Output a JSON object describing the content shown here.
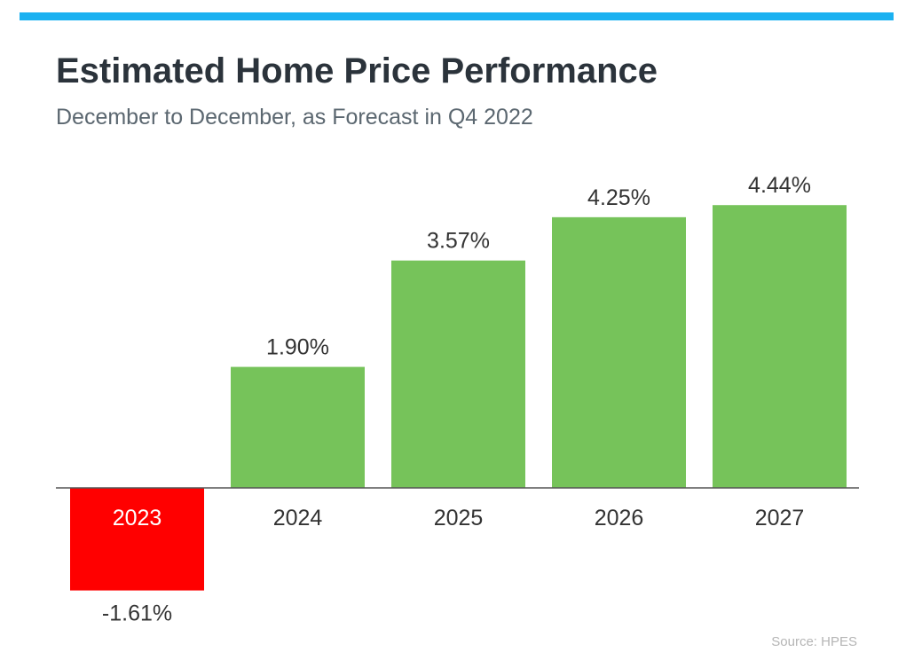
{
  "header": {
    "title": "Estimated Home Price Performance",
    "subtitle": "December to December, as Forecast in Q4 2022",
    "accent_color": "#1bb1f1"
  },
  "footer": {
    "source": "Source: HPES"
  },
  "chart_data": {
    "type": "bar",
    "categories": [
      "2023",
      "2024",
      "2025",
      "2026",
      "2027"
    ],
    "values": [
      -1.61,
      1.9,
      3.57,
      4.25,
      4.44
    ],
    "labels": [
      "-1.61%",
      "1.90%",
      "3.57%",
      "4.25%",
      "4.44%"
    ],
    "colors": [
      "#ff0000",
      "#76c35a",
      "#76c35a",
      "#76c35a",
      "#76c35a"
    ],
    "tick_label_colors": [
      "#ffffff",
      "#333333",
      "#333333",
      "#333333",
      "#333333"
    ],
    "title": "Estimated Home Price Performance",
    "subtitle": "December to December, as Forecast in Q4 2022",
    "xlabel": "",
    "ylabel": "",
    "ylim": [
      -1.61,
      4.44
    ],
    "grid": false,
    "legend": "none"
  }
}
